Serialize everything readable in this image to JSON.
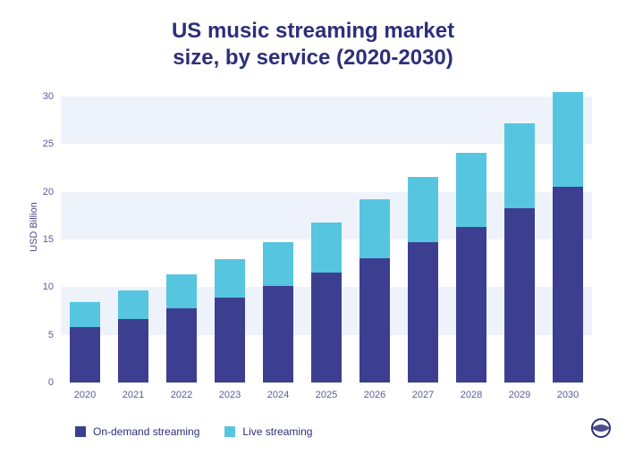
{
  "chart": {
    "type": "stacked-bar",
    "title_line1": "US music streaming market",
    "title_line2": "size, by service (2020-2030)",
    "title_fontsize": 24,
    "title_color": "#2e2f7a",
    "ylabel": "USD Billion",
    "label_fontsize": 11,
    "background_color": "#ffffff",
    "grid_band_color": "#eef3fb",
    "axis_text_color": "#5a5b9a",
    "ylim": [
      0,
      30
    ],
    "ytick_step": 5,
    "yticks": [
      "0",
      "5",
      "10",
      "15",
      "20",
      "25",
      "30"
    ],
    "categories": [
      "2020",
      "2021",
      "2022",
      "2023",
      "2024",
      "2025",
      "2026",
      "2027",
      "2028",
      "2029",
      "2030"
    ],
    "series": [
      {
        "name": "On-demand streaming",
        "color": "#3c3f8f",
        "values": [
          5.8,
          6.7,
          7.8,
          8.9,
          10.1,
          11.5,
          13.0,
          14.7,
          16.3,
          18.3,
          20.5
        ]
      },
      {
        "name": "Live streaming",
        "color": "#56c5e0",
        "values": [
          2.6,
          3.0,
          3.5,
          4.0,
          4.6,
          5.3,
          6.2,
          6.9,
          7.8,
          8.9,
          10.0
        ]
      }
    ],
    "bar_width_ratio": 0.62,
    "legend_position": "bottom-left"
  },
  "logo": {
    "name": "brand-logo",
    "color": "#2e2f7a"
  }
}
